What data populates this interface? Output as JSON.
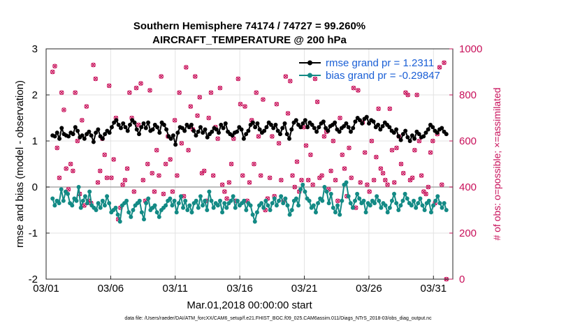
{
  "chart_data": {
    "type": "line",
    "title": "Southern Hemisphere 74174 / 74727 = 99.260%",
    "subtitle": "AIRCRAFT_TEMPERATURE @ 200 hPa",
    "xlabel": "Mar.01,2018 00:00:00 start",
    "ylabel": "rmse and bias (model - observation)",
    "ylabel_right": "# of obs: o=possible; ×=assimilated",
    "xlim": [
      0,
      31.5
    ],
    "ylim": [
      -2,
      3
    ],
    "ylim_right": [
      0,
      1000
    ],
    "xticks": [
      0,
      5,
      10,
      15,
      20,
      25,
      30
    ],
    "xtick_labels": [
      "03/01",
      "03/06",
      "03/11",
      "03/16",
      "03/21",
      "03/26",
      "03/31"
    ],
    "yticks": [
      -2,
      -1,
      0,
      1,
      2,
      3
    ],
    "ytick_labels": [
      "-2",
      "-1",
      "0",
      "1",
      "2",
      "3"
    ],
    "yticks_right": [
      0,
      200,
      400,
      600,
      800,
      1000
    ],
    "ytick_labels_right": [
      "0",
      "200",
      "400",
      "600",
      "800",
      "1000"
    ],
    "legend_position": "top-right",
    "grid": true,
    "zero_line": 0,
    "series": [
      {
        "name": "rmse grand pr = 1.2311",
        "color": "#000000",
        "marker": "circle",
        "values": [
          1.12,
          1.1,
          1.18,
          1.05,
          1.28,
          1.15,
          1.12,
          1.1,
          1.18,
          1.15,
          1.3,
          1.22,
          1.08,
          1.12,
          1.05,
          1.15,
          1.2,
          1.12,
          0.98,
          1.18,
          1.25,
          1.1,
          1.05,
          1.15,
          1.22,
          1.18,
          1.3,
          1.4,
          1.45,
          1.35,
          1.28,
          1.38,
          1.3,
          1.22,
          1.35,
          1.45,
          1.4,
          1.25,
          1.15,
          1.3,
          1.38,
          1.28,
          1.4,
          1.22,
          1.25,
          1.35,
          1.3,
          1.18,
          1.4,
          1.35,
          1.25,
          1.1,
          1.05,
          1.12,
          0.92,
          1.18,
          1.3,
          1.28,
          1.22,
          1.35,
          1.3,
          1.35,
          1.22,
          1.12,
          1.2,
          1.3,
          1.18,
          1.25,
          1.08,
          1.15,
          1.2,
          1.28,
          1.25,
          1.18,
          1.35,
          1.28,
          1.38,
          1.2,
          1.15,
          1.12,
          1.18,
          1.2,
          1.3,
          1.25,
          1.05,
          1.15,
          1.22,
          1.35,
          1.4,
          1.3,
          1.38,
          1.25,
          1.18,
          1.22,
          1.3,
          1.4,
          1.35,
          1.28,
          1.35,
          1.22,
          1.15,
          1.28,
          1.38,
          1.15,
          1.05,
          1.25,
          1.4,
          1.45,
          1.35,
          1.3,
          1.38,
          1.45,
          1.3,
          1.4,
          1.35,
          1.28,
          1.2,
          1.3,
          1.38,
          1.42,
          1.28,
          1.22,
          1.32,
          1.35,
          1.4,
          1.25,
          1.2,
          1.28,
          1.32,
          1.38,
          1.3,
          1.2,
          1.28,
          1.42,
          1.5,
          1.45,
          1.38,
          1.48,
          1.52,
          1.38,
          1.45,
          1.42,
          1.3,
          1.35,
          1.25,
          1.32,
          1.4,
          1.35,
          1.3,
          1.22,
          1.18,
          1.25,
          1.1,
          1.02,
          1.15,
          1.22,
          1.08,
          1.0,
          1.12,
          1.05,
          1.2,
          1.15,
          1.08,
          1.1,
          1.18,
          1.25,
          1.35,
          1.3,
          1.22,
          1.18,
          1.25,
          1.28,
          1.2,
          1.15
        ]
      },
      {
        "name": "bias grand pr = -0.29847",
        "color": "#138a85",
        "marker": "circle",
        "values": [
          -0.25,
          -0.4,
          -0.3,
          -0.35,
          -0.05,
          -0.3,
          -0.1,
          -0.15,
          -0.35,
          -0.4,
          -0.25,
          -0.3,
          0.0,
          -0.45,
          -0.3,
          -0.2,
          -0.35,
          -0.1,
          -0.4,
          -0.45,
          -0.5,
          -0.35,
          -0.45,
          -0.3,
          -0.4,
          -0.2,
          -0.35,
          -0.55,
          -0.5,
          -0.45,
          -0.6,
          -0.75,
          -0.4,
          -0.35,
          -0.3,
          -0.55,
          -0.65,
          -0.5,
          -0.4,
          -0.35,
          -0.3,
          -0.55,
          -0.7,
          -0.35,
          -0.25,
          -0.5,
          -0.45,
          -0.4,
          -0.55,
          -0.65,
          -0.5,
          -0.45,
          -0.4,
          -0.3,
          -0.25,
          -0.4,
          -0.3,
          -0.55,
          -0.35,
          -0.2,
          -0.45,
          -0.3,
          -0.5,
          -0.4,
          -0.55,
          -0.35,
          -0.3,
          -0.45,
          -0.2,
          -0.4,
          -0.3,
          -0.5,
          -0.1,
          -0.3,
          -0.45,
          -0.35,
          -0.4,
          -0.3,
          -0.55,
          -0.35,
          -0.45,
          -0.35,
          -0.3,
          -0.2,
          -0.45,
          -0.3,
          -0.4,
          -0.35,
          -0.3,
          -0.5,
          -0.35,
          -0.4,
          -0.6,
          -0.75,
          -0.55,
          -0.4,
          -0.35,
          -0.45,
          -0.3,
          -0.4,
          -0.5,
          -0.35,
          -0.25,
          -0.4,
          -0.3,
          -0.2,
          -0.35,
          -0.25,
          -0.4,
          -0.6,
          -0.5,
          -0.3,
          -0.25,
          -0.4,
          -0.05,
          0.05,
          -0.1,
          -0.25,
          -0.3,
          -0.45,
          -0.4,
          -0.55,
          -0.35,
          -0.25,
          -0.3,
          0.0,
          -0.1,
          -0.35,
          -0.15,
          -0.45,
          -0.55,
          -0.4,
          -0.6,
          -0.3,
          0.05,
          0.1,
          -0.2,
          -0.35,
          -0.45,
          -0.3,
          -0.15,
          -0.25,
          -0.35,
          -0.3,
          -0.55,
          -0.35,
          -0.4,
          -0.3,
          -0.35,
          -0.2,
          -0.3,
          -0.45,
          -0.35,
          -0.4,
          -0.55,
          -0.45,
          -0.3,
          -0.15,
          -0.35,
          -0.5,
          -0.4,
          -0.3,
          -0.15,
          -0.25,
          -0.35,
          -0.4,
          -0.3,
          -0.45,
          -0.35,
          -0.25,
          -0.4,
          -0.5,
          -0.35,
          -0.3,
          -0.55,
          -0.4,
          -0.3,
          -0.2,
          -0.35,
          -0.45,
          -0.35,
          -0.5
        ]
      }
    ],
    "obs_counts": {
      "name": "# of obs",
      "color": "#c8105a",
      "values": [
        900,
        925,
        570,
        440,
        810,
        735,
        480,
        390,
        500,
        470,
        810,
        600,
        370,
        690,
        320,
        750,
        340,
        330,
        930,
        870,
        420,
        470,
        610,
        540,
        440,
        840,
        440,
        520,
        700,
        260,
        310,
        410,
        430,
        480,
        810,
        700,
        380,
        830,
        670,
        850,
        430,
        340,
        500,
        820,
        460,
        380,
        560,
        450,
        880,
        370,
        500,
        620,
        520,
        380,
        690,
        450,
        810,
        590,
        360,
        920,
        560,
        750,
        650,
        880,
        710,
        790,
        460,
        470,
        340,
        700,
        810,
        450,
        660,
        610,
        830,
        410,
        380,
        350,
        420,
        500,
        610,
        340,
        870,
        760,
        450,
        750,
        340,
        420,
        690,
        500,
        810,
        620,
        450,
        780,
        300,
        350,
        440,
        620,
        360,
        760,
        590,
        430,
        340,
        880,
        720,
        860,
        450,
        400,
        510,
        380,
        430,
        660,
        580,
        430,
        540,
        410,
        870,
        770,
        440,
        450,
        620,
        640,
        390,
        470,
        600,
        430,
        340,
        700,
        540,
        480,
        360,
        570,
        440,
        830,
        310,
        820,
        420,
        680,
        550,
        410,
        380,
        600,
        430,
        530,
        740,
        480,
        460,
        430,
        410,
        740,
        560,
        420,
        570,
        620,
        500,
        460,
        810,
        800,
        430,
        440,
        560,
        800,
        600,
        450,
        380,
        370,
        400,
        550,
        600,
        330,
        630,
        920,
        410,
        940,
        0
      ]
    }
  },
  "footnote": "data file: /Users/raeder/DAI/ATM_forcXX/CAM6_setup/f.e21.FHIST_BGC.f09_025.CAM6assim.011/Diags_NTrS_2018-03/obs_diag_output.nc"
}
